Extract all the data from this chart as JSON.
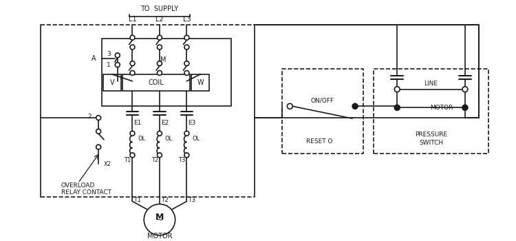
{
  "bg_color": "#ffffff",
  "line_color": "#1a1a1a",
  "labels": {
    "to_supply": "TO  SUPPLY",
    "l1": "L1",
    "l2": "L2",
    "l3": "L3",
    "a": "A",
    "num3": "3",
    "num1": "1",
    "m": "M",
    "v": "V",
    "coil": "COIL",
    "w": "W",
    "e1": "E1",
    "e2": "E2",
    "e3": "E3",
    "num2": "2",
    "ol": "OL",
    "t1_top": "T1",
    "t2_top": "T2",
    "t3_top": "T3",
    "x2": "X2",
    "overload1": "OVERLOAD",
    "overload2": "RELAY CONTACT",
    "t1": "T1",
    "t2": "T2",
    "t3": "T3",
    "motor": "MOTOR",
    "on_off": "ON/OFF",
    "reset": "RESET O",
    "pressure": "PRESSURE",
    "switch": "SWITCH",
    "line_lbl": "LINE",
    "motor2": "MOTOR"
  }
}
